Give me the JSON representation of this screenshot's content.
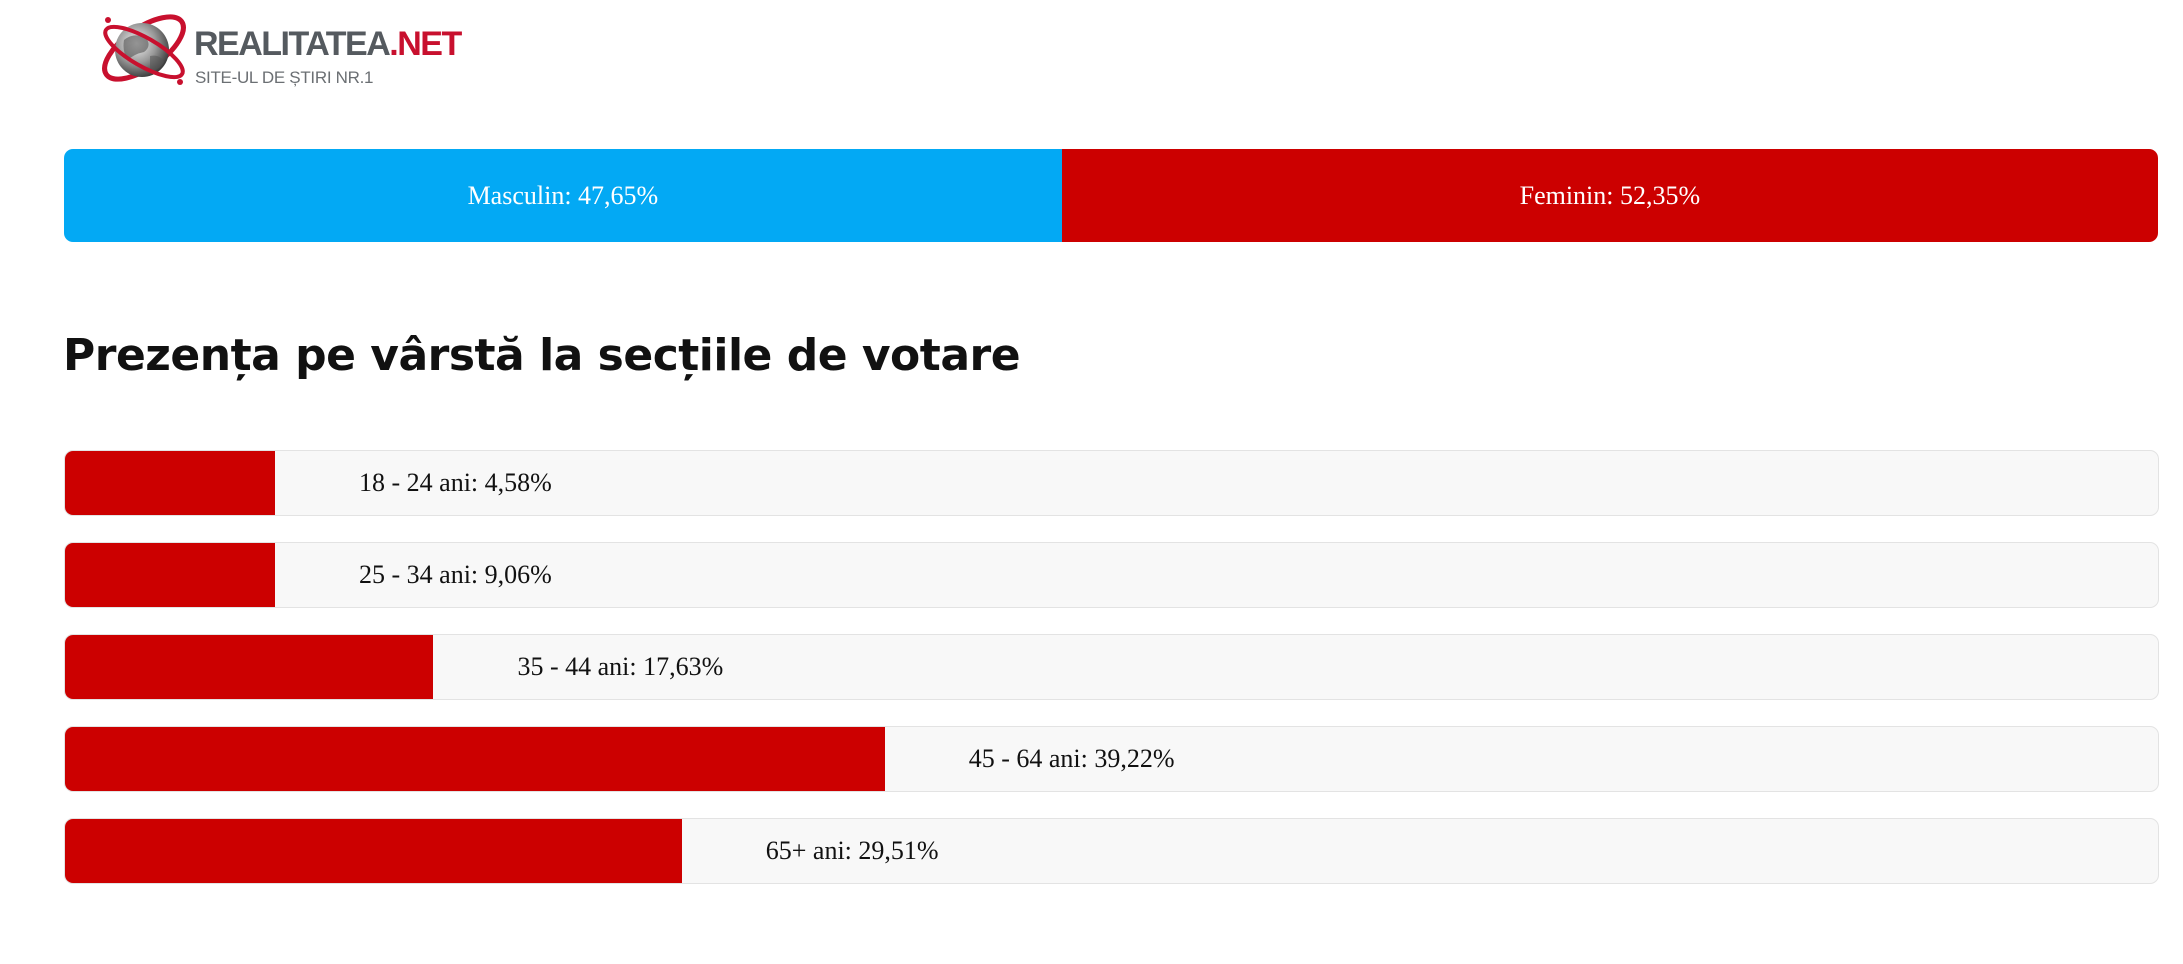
{
  "logo": {
    "name_main": "REALITATEA",
    "name_suffix": ".NET",
    "tagline": "SITE-UL DE ȘTIRI NR.1"
  },
  "colors": {
    "male": "#03a9f4",
    "female": "#cc0000",
    "age_fill": "#cc0000",
    "track": "#f8f8f8"
  },
  "gender": {
    "male_label": "Masculin: 47,65%",
    "female_label": "Feminin: 52,35%"
  },
  "age_section": {
    "heading": "Prezența pe vârstă la secțiile de votare"
  },
  "chart_data": [
    {
      "type": "bar",
      "orientation": "horizontal-stacked",
      "categories": [
        "Masculin",
        "Feminin"
      ],
      "values": [
        47.65,
        52.35
      ],
      "unit": "%",
      "labels": [
        "Masculin: 47,65%",
        "Feminin: 52,35%"
      ]
    },
    {
      "type": "bar",
      "orientation": "horizontal",
      "title": "Prezența pe vârstă la secțiile de votare",
      "categories": [
        "18 - 24 ani",
        "25 - 34 ani",
        "35 - 44 ani",
        "45 - 64 ani",
        "65+ ani"
      ],
      "values": [
        4.58,
        9.06,
        17.63,
        39.22,
        29.51
      ],
      "unit": "%",
      "labels": [
        "18 - 24 ani: 4,58%",
        "25 - 34 ani: 9,06%",
        "35 - 44 ani: 17,63%",
        "45 - 64 ani: 39,22%",
        "65+ ani: 29,51%"
      ]
    }
  ]
}
